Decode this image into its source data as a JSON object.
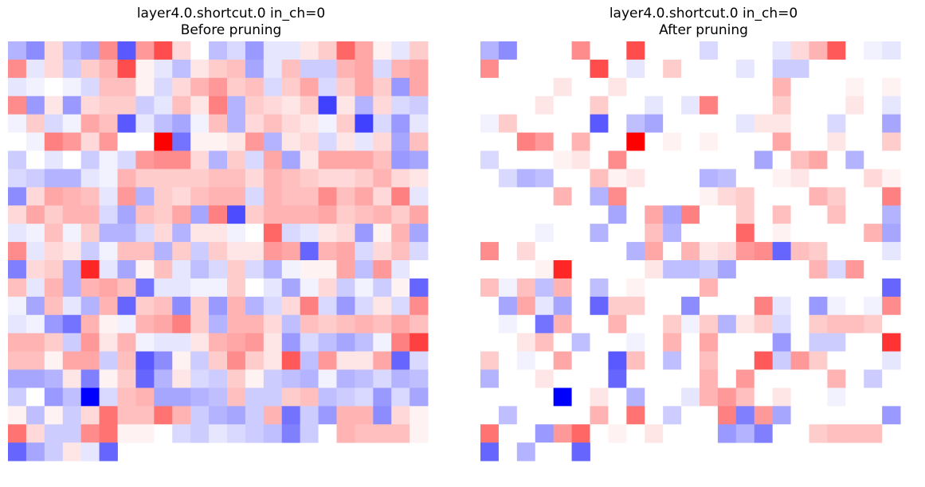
{
  "chart_data": [
    {
      "type": "heatmap",
      "title": "layer4.0.shortcut.0 in_ch=0",
      "subtitle": "Before pruning",
      "colormap": "bwr",
      "value_range": [
        -1,
        1
      ],
      "rows": 24,
      "cols": 24,
      "values": [
        [
          -0.3,
          -0.45,
          0.15,
          -0.25,
          -0.35,
          0.45,
          -0.65,
          0.4,
          0.7,
          0.15,
          0,
          -0.25,
          -0.15,
          -0.4,
          -0.1,
          -0.1,
          0.1,
          0.2,
          0.6,
          0.35,
          0.05,
          -0.1,
          0.2,
          null
        ],
        [
          0.45,
          -0.1,
          0.15,
          -0.2,
          0.2,
          0.3,
          0.7,
          0.05,
          -0.1,
          -0.25,
          0.1,
          0.2,
          0.25,
          -0.35,
          -0.1,
          0.25,
          -0.2,
          -0.2,
          0.3,
          0.35,
          -0.15,
          0.3,
          0.35,
          null
        ],
        [
          -0.1,
          -0.05,
          0,
          -0.05,
          -0.15,
          0.25,
          0.25,
          0.05,
          -0.15,
          0.15,
          0.3,
          0.4,
          0.2,
          0.25,
          -0.15,
          0.2,
          0.35,
          -0.15,
          0.2,
          0.35,
          0.2,
          -0.4,
          0.35,
          null
        ],
        [
          0.45,
          -0.4,
          0.1,
          -0.4,
          0.15,
          0.2,
          0.2,
          -0.2,
          -0.1,
          0.25,
          0.1,
          0.5,
          -0.3,
          0.2,
          0.15,
          0.1,
          0.2,
          -0.75,
          0.1,
          -0.3,
          0.15,
          -0.15,
          -0.2,
          null
        ],
        [
          -0.05,
          0.2,
          -0.15,
          -0.05,
          0.35,
          0.25,
          -0.65,
          -0.1,
          -0.25,
          -0.35,
          -0.05,
          0.25,
          -0.3,
          0.15,
          0.25,
          0.15,
          0.1,
          -0.05,
          0.2,
          -0.75,
          -0.15,
          -0.4,
          -0.1,
          null
        ],
        [
          0,
          -0.05,
          0.5,
          0.4,
          0.15,
          0.4,
          0,
          0,
          1,
          -0.55,
          0.05,
          0.05,
          0.1,
          0.4,
          -0.3,
          0.1,
          0.15,
          -0.15,
          0.1,
          -0.1,
          0.15,
          -0.35,
          0.25,
          null
        ],
        [
          -0.2,
          0,
          -0.1,
          0,
          -0.2,
          -0.05,
          -0.15,
          0.4,
          0.45,
          0.45,
          0.15,
          -0.3,
          0.2,
          -0.15,
          0.35,
          -0.35,
          0.1,
          0.35,
          0.35,
          0.35,
          0.25,
          -0.4,
          -0.35,
          null
        ],
        [
          -0.15,
          -0.2,
          -0.3,
          -0.3,
          -0.1,
          -0.05,
          0.3,
          0.2,
          0.2,
          0.2,
          0.2,
          0.25,
          0.25,
          0.15,
          0.3,
          0.25,
          0.2,
          0.15,
          0.15,
          0.2,
          0.3,
          0.15,
          0.1,
          null
        ],
        [
          -0.45,
          0.15,
          0.35,
          0.3,
          0.25,
          -0.1,
          0.4,
          -0.3,
          0.2,
          0.15,
          0.25,
          0.3,
          0.3,
          -0.15,
          0.3,
          0.25,
          0.25,
          0.45,
          0.25,
          0.35,
          0.15,
          0.5,
          -0.1,
          null
        ],
        [
          0.15,
          0.35,
          0.2,
          0.3,
          0.3,
          -0.15,
          -0.35,
          0.25,
          0.2,
          0.35,
          -0.35,
          0.5,
          -0.7,
          0.2,
          0.3,
          0.3,
          0.3,
          0.35,
          0.2,
          0.25,
          0.3,
          0.2,
          0.35,
          null
        ],
        [
          -0.1,
          -0.05,
          0.25,
          -0.05,
          0.2,
          -0.3,
          -0.3,
          -0.15,
          0.15,
          -0.3,
          0.1,
          0.1,
          -0.05,
          0,
          0.6,
          -0.15,
          -0.1,
          0.1,
          0.15,
          -0.4,
          0.05,
          0.3,
          -0.35,
          null
        ],
        [
          0.45,
          -0.1,
          0.15,
          0.1,
          -0.2,
          -0.05,
          0.25,
          0.25,
          -0.3,
          0.2,
          -0.2,
          0.2,
          0.1,
          0.1,
          0.4,
          0.35,
          -0.6,
          0.3,
          0.35,
          -0.15,
          0.15,
          0.25,
          -0.15,
          null
        ],
        [
          -0.5,
          0.15,
          0.2,
          -0.3,
          0.85,
          -0.1,
          -0.35,
          0.05,
          0.25,
          -0.1,
          -0.25,
          -0.15,
          0.2,
          -0.15,
          -0.3,
          -0.05,
          0.05,
          0.05,
          0.35,
          -0.25,
          0.4,
          -0.1,
          0,
          null
        ],
        [
          0.25,
          -0.1,
          0.3,
          -0.3,
          0.3,
          0.35,
          0.25,
          -0.55,
          -0.1,
          -0.1,
          -0.05,
          -0.05,
          0.2,
          0,
          -0.1,
          -0.35,
          -0.05,
          0.15,
          -0.2,
          -0.05,
          -0.2,
          0.05,
          -0.6,
          null
        ],
        [
          -0.05,
          -0.35,
          0.25,
          -0.1,
          -0.3,
          0.3,
          -0.6,
          0.2,
          0.25,
          -0.45,
          0.2,
          -0.4,
          0.3,
          -0.3,
          -0.15,
          0.15,
          0.5,
          -0.15,
          -0.4,
          -0.15,
          0.1,
          -0.15,
          0.45,
          null
        ],
        [
          -0.1,
          -0.05,
          -0.4,
          -0.55,
          0.3,
          0.05,
          -0.05,
          0.3,
          0.35,
          0.5,
          0.2,
          -0.3,
          0.3,
          0.3,
          0.15,
          -0.25,
          0.25,
          0.2,
          0.25,
          0.3,
          0.25,
          0.35,
          0.25,
          null
        ],
        [
          0.3,
          0.3,
          0.2,
          -0.2,
          0.4,
          0.1,
          0.3,
          -0.05,
          -0.1,
          -0.1,
          0.1,
          0.3,
          0.35,
          0.4,
          0.1,
          -0.4,
          -0.15,
          -0.25,
          -0.35,
          -0.25,
          -0.05,
          0.5,
          0.75,
          null
        ],
        [
          0.25,
          0.25,
          0.05,
          0.35,
          0.35,
          -0.2,
          0.25,
          -0.65,
          -0.45,
          0.05,
          -0.2,
          0.2,
          0.45,
          0.2,
          0.1,
          0.65,
          -0.25,
          0.4,
          0.1,
          0.1,
          0.35,
          -0.6,
          -0.15,
          null
        ],
        [
          -0.35,
          -0.35,
          -0.3,
          0.1,
          -0.5,
          0.05,
          0.2,
          -0.6,
          -0.3,
          0.1,
          -0.15,
          -0.2,
          0.2,
          0.05,
          -0.2,
          -0.25,
          -0.3,
          -0.05,
          -0.3,
          -0.25,
          -0.15,
          -0.3,
          -0.25,
          null
        ],
        [
          -0.2,
          0,
          -0.4,
          -0.25,
          -1,
          -0.15,
          0.25,
          0.3,
          -0.35,
          -0.35,
          -0.3,
          -0.25,
          0.25,
          -0.2,
          -0.2,
          0.2,
          0.25,
          -0.25,
          -0.2,
          -0.15,
          -0.4,
          -0.15,
          -0.35,
          null
        ],
        [
          0.05,
          -0.25,
          0.05,
          -0.2,
          0.15,
          0.55,
          0.25,
          0.25,
          0.55,
          0.3,
          -0.2,
          -0.3,
          -0.35,
          -0.2,
          0.3,
          -0.55,
          -0.2,
          -0.4,
          0.3,
          0.3,
          -0.45,
          0.15,
          0.05,
          null
        ],
        [
          0.55,
          0.15,
          -0.2,
          -0.2,
          0.45,
          0.55,
          0.05,
          0.05,
          0,
          -0.15,
          -0.2,
          -0.1,
          -0.15,
          -0.2,
          -0.25,
          -0.5,
          -0.2,
          0,
          0.3,
          0.25,
          0.25,
          0.25,
          0.05,
          null
        ],
        [
          -0.6,
          -0.35,
          -0.2,
          0.1,
          -0.1,
          -0.6,
          null,
          null,
          null,
          null,
          null,
          null,
          null,
          null,
          null,
          null,
          null,
          null,
          null,
          null,
          null,
          null,
          null,
          null
        ]
      ]
    },
    {
      "type": "heatmap",
      "title": "layer4.0.shortcut.0 in_ch=0",
      "subtitle": "After pruning",
      "colormap": "bwr",
      "value_range": [
        -1,
        1
      ],
      "rows": 24,
      "cols": 24,
      "values": [
        [
          -0.3,
          -0.45,
          0,
          0,
          0,
          0.45,
          0,
          0,
          0.7,
          0,
          0,
          0,
          -0.15,
          0,
          0,
          0,
          -0.1,
          0.15,
          0.3,
          0.65,
          0,
          -0.05,
          -0.1,
          null
        ],
        [
          0.45,
          0,
          0,
          0,
          0,
          0,
          0.7,
          0,
          -0.1,
          0,
          0.2,
          0,
          0,
          0,
          -0.1,
          0,
          -0.2,
          -0.2,
          0,
          0,
          0,
          0,
          0,
          null
        ],
        [
          0,
          0,
          0,
          0,
          0.1,
          0,
          0,
          0.1,
          0,
          0,
          0,
          0,
          0,
          0,
          0,
          0,
          0.3,
          0,
          0,
          0,
          0.05,
          0,
          0.05,
          null
        ],
        [
          0,
          0,
          0,
          0.1,
          0,
          0,
          0.2,
          0,
          0,
          -0.1,
          0,
          -0.1,
          0.5,
          0,
          0,
          0,
          0.2,
          0,
          0,
          0,
          0.1,
          0,
          -0.1,
          null
        ],
        [
          -0.05,
          0.2,
          0,
          0,
          0,
          0,
          -0.65,
          0,
          -0.25,
          -0.35,
          0,
          0,
          0,
          0,
          -0.1,
          0.1,
          0.1,
          0,
          0,
          -0.15,
          0,
          0,
          -0.35,
          null
        ],
        [
          0,
          0,
          0.5,
          0.4,
          0,
          0.3,
          0,
          0,
          1,
          0,
          0.05,
          0,
          0.05,
          0,
          0,
          0,
          0.35,
          0,
          0,
          0.1,
          0,
          0,
          0.2,
          null
        ],
        [
          -0.15,
          0,
          0,
          0,
          0.05,
          0.1,
          0,
          0.45,
          0,
          0,
          0,
          0,
          0,
          0,
          0,
          -0.35,
          0,
          0.25,
          0.35,
          0,
          -0.3,
          0,
          0,
          null
        ],
        [
          0,
          -0.15,
          -0.3,
          -0.25,
          0,
          0,
          0.25,
          0.05,
          0.1,
          0,
          0,
          0,
          -0.3,
          -0.25,
          0,
          0,
          0.05,
          0.1,
          0,
          0,
          0,
          0.15,
          0.05,
          null
        ],
        [
          0,
          0,
          0,
          0,
          0.3,
          0,
          -0.3,
          0.45,
          0,
          0,
          0,
          0,
          0.05,
          0.15,
          0.2,
          0,
          0,
          0,
          0.3,
          0.2,
          0,
          0,
          0.5,
          null
        ],
        [
          0,
          0,
          0,
          0,
          0,
          0,
          0,
          -0.35,
          0,
          0.35,
          -0.35,
          0.5,
          0,
          0,
          0.2,
          0,
          0.25,
          0,
          0,
          0.25,
          0,
          0,
          -0.3,
          null
        ],
        [
          0,
          0,
          0,
          -0.05,
          0,
          0,
          -0.3,
          0,
          0,
          0.25,
          -0.3,
          0,
          0,
          0,
          0.6,
          0,
          0.05,
          0,
          0,
          0,
          0,
          0.3,
          -0.35,
          null
        ],
        [
          0.45,
          0,
          0.15,
          0,
          0,
          0,
          0,
          0,
          -0.3,
          0.35,
          0,
          0.3,
          0.1,
          0.15,
          0.4,
          0.45,
          -0.6,
          0.25,
          0.2,
          0,
          0,
          0,
          -0.1,
          null
        ],
        [
          0,
          0,
          0,
          0.05,
          0.85,
          0,
          0,
          0,
          0,
          0.1,
          -0.25,
          -0.25,
          -0.2,
          -0.35,
          0,
          0,
          0,
          0,
          0.3,
          -0.15,
          0.4,
          0,
          0,
          null
        ],
        [
          0.25,
          -0.05,
          0.25,
          -0.25,
          0.3,
          0,
          -0.25,
          0,
          0.05,
          0,
          0,
          0,
          0.3,
          0,
          0,
          0,
          0,
          0,
          0,
          0,
          0,
          0,
          -0.6,
          null
        ],
        [
          0,
          -0.35,
          0.35,
          -0.1,
          -0.35,
          0,
          -0.6,
          0.2,
          0.2,
          0,
          0,
          -0.45,
          0,
          0,
          0,
          0.5,
          -0.1,
          0,
          -0.4,
          -0.05,
          0,
          -0.05,
          0.45,
          null
        ],
        [
          0,
          -0.05,
          0,
          -0.55,
          0.3,
          0,
          0,
          0.3,
          0,
          0,
          0.2,
          -0.05,
          0.2,
          -0.3,
          0.1,
          0.2,
          -0.15,
          0,
          0.2,
          0.25,
          0.25,
          0.2,
          0,
          null
        ],
        [
          0,
          0,
          0.1,
          0.25,
          0,
          -0.25,
          0,
          0,
          -0.05,
          0,
          0.3,
          0,
          0.35,
          0,
          0,
          0,
          -0.4,
          0,
          -0.2,
          -0.2,
          0,
          0,
          0.8,
          null
        ],
        [
          0.2,
          0,
          -0.05,
          0,
          0.35,
          0,
          0,
          -0.65,
          0.25,
          0,
          -0.25,
          0,
          0.25,
          0,
          0,
          0.65,
          -0.2,
          0.4,
          0.2,
          0,
          0,
          0,
          -0.1,
          null
        ],
        [
          -0.3,
          0,
          0,
          0.1,
          0,
          0,
          0,
          -0.6,
          0,
          0,
          0,
          0,
          0.3,
          0,
          0.4,
          0,
          0,
          0,
          0,
          0.3,
          0,
          -0.2,
          0,
          null
        ],
        [
          0,
          0,
          0,
          0,
          -1,
          0,
          0.1,
          0,
          -0.3,
          0,
          0,
          -0.1,
          0.3,
          0.4,
          0.25,
          0,
          0.1,
          0,
          0,
          -0.05,
          0,
          0,
          0,
          null
        ],
        [
          0,
          -0.25,
          0,
          0,
          0,
          0,
          0.3,
          0,
          0.55,
          0,
          -0.2,
          0,
          0,
          0.5,
          -0.5,
          0.4,
          -0.35,
          0,
          0,
          0,
          0,
          0,
          -0.4,
          null
        ],
        [
          0.55,
          0,
          0,
          -0.4,
          0.4,
          0.6,
          0,
          0.05,
          0,
          0.1,
          0,
          0,
          0,
          -0.4,
          -0.3,
          -0.5,
          0,
          0,
          0.2,
          0.25,
          0.25,
          0.25,
          0,
          null
        ],
        [
          -0.6,
          0,
          -0.3,
          0,
          0,
          -0.6,
          null,
          null,
          null,
          null,
          null,
          null,
          null,
          null,
          null,
          null,
          null,
          null,
          null,
          null,
          null,
          null,
          null,
          null
        ]
      ]
    }
  ]
}
